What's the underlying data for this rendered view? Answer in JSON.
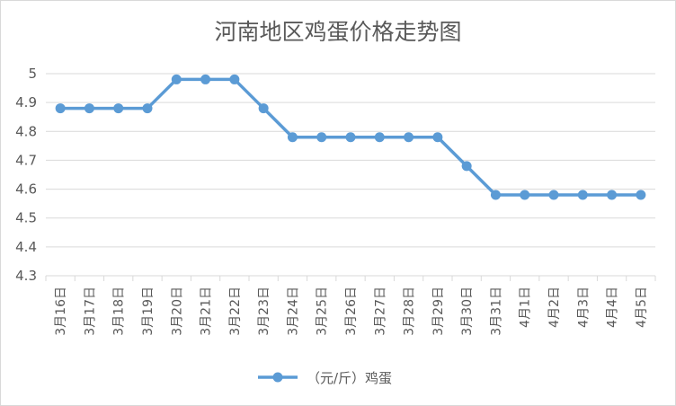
{
  "chart_data": {
    "type": "line",
    "title": "河南地区鸡蛋价格走势图",
    "xlabel": "",
    "ylabel": "",
    "categories": [
      "3月16日",
      "3月17日",
      "3月18日",
      "3月19日",
      "3月20日",
      "3月21日",
      "3月22日",
      "3月23日",
      "3月24日",
      "3月25日",
      "3月26日",
      "3月27日",
      "3月28日",
      "3月29日",
      "3月30日",
      "3月31日",
      "4月1日",
      "4月2日",
      "4月3日",
      "4月4日",
      "4月5日"
    ],
    "series": [
      {
        "name": "（元/斤）鸡蛋",
        "values": [
          4.88,
          4.88,
          4.88,
          4.88,
          4.98,
          4.98,
          4.98,
          4.88,
          4.78,
          4.78,
          4.78,
          4.78,
          4.78,
          4.78,
          4.68,
          4.58,
          4.58,
          4.58,
          4.58,
          4.58,
          4.58
        ]
      }
    ],
    "ylim": [
      4.3,
      5.0
    ],
    "yticks": [
      "5",
      "4.9",
      "4.8",
      "4.7",
      "4.6",
      "4.5",
      "4.4",
      "4.3"
    ],
    "grid": true,
    "legend": "bottom",
    "series_color": "#5b9bd5",
    "grid_color": "#d9d9d9"
  }
}
